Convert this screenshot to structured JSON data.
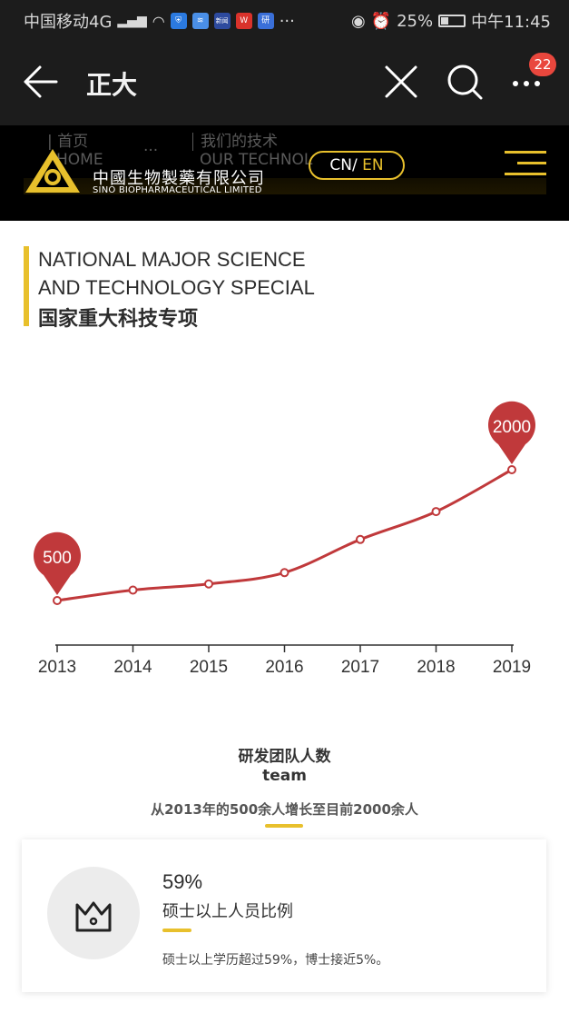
{
  "status_bar": {
    "carrier": "中国移动4G",
    "net": "⁴ᴳ",
    "app_icons": [
      {
        "label": "⛨",
        "color": "#2b7ae0"
      },
      {
        "label": "≋",
        "color": "#4a8fe7"
      },
      {
        "label": "新闻",
        "color": "#2d4a9e"
      },
      {
        "label": "W",
        "color": "#d9322b"
      },
      {
        "label": "研",
        "color": "#3a6fd8"
      }
    ],
    "dots": "···",
    "battery": "25%",
    "time": "中午11:45"
  },
  "nav": {
    "title": "正大",
    "badge": "22"
  },
  "site_header": {
    "ghost_home_cn": "| 首页",
    "ghost_home_en": "HOME",
    "ghost_dots": "···",
    "ghost_tech_cn": "我们的技术",
    "ghost_tech_en": "OUR TECHNOL",
    "brand_cn": "中國生物製藥有限公司",
    "brand_en": "SINO BIOPHARMACEUTICAL LIMITED",
    "lang_cn": "CN/",
    "lang_en": " EN"
  },
  "section": {
    "title_en_line1": "NATIONAL MAJOR SCIENCE",
    "title_en_line2": "AND TECHNOLOGY SPECIAL",
    "title_cn": "国家重大科技专项"
  },
  "chart_data": {
    "type": "line",
    "x": [
      "2013",
      "2014",
      "2015",
      "2016",
      "2017",
      "2018",
      "2019"
    ],
    "series": [
      {
        "values": [
          500,
          620,
          690,
          820,
          1200,
          1520,
          2000
        ]
      }
    ],
    "annotations": [
      {
        "x": "2013",
        "label": "500"
      },
      {
        "x": "2019",
        "label": "2000"
      }
    ],
    "line_color": "#c0393b",
    "ylim": [
      0,
      2200
    ]
  },
  "team": {
    "title": "研发团队人数",
    "subtitle": "team",
    "description": "从2013年的500余人增长至目前2000余人"
  },
  "card": {
    "percent": "59%",
    "label": "硕士以上人员比例",
    "note": "硕士以上学历超过59%，博士接近5%。"
  },
  "colors": {
    "accent": "#e8c02c",
    "chart_red": "#c0393b",
    "dark_bg": "#1c1c1c"
  }
}
